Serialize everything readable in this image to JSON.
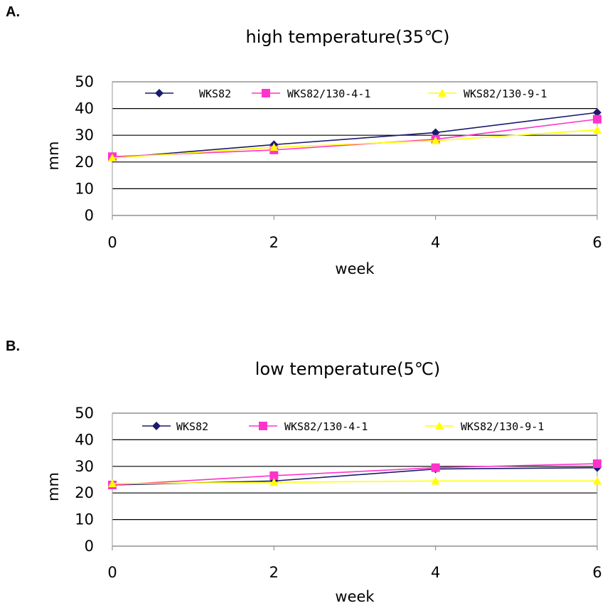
{
  "panels": [
    {
      "label": "A."
    },
    {
      "label": "B."
    }
  ],
  "chart_data": [
    {
      "type": "line",
      "title": "high temperature(35℃)",
      "xlabel": "week",
      "ylabel": "mm",
      "x": [
        0,
        2,
        4,
        6
      ],
      "xticks": [
        "0",
        "2",
        "4",
        "6"
      ],
      "yticks": [
        "0",
        "10",
        "20",
        "30",
        "40",
        "50"
      ],
      "ylim": [
        0,
        50
      ],
      "grid": "horizontal",
      "legend": "top",
      "series": [
        {
          "name": "WKS82",
          "values": [
            21.5,
            26.5,
            31,
            38.5
          ],
          "color": "#1a1a6e",
          "marker": "diamond"
        },
        {
          "name": "WKS82/130-4-1",
          "values": [
            22,
            24.5,
            28.5,
            36
          ],
          "color": "#ff33cc",
          "marker": "square"
        },
        {
          "name": "WKS82/130-9-1",
          "values": [
            21.5,
            25.5,
            28,
            32
          ],
          "color": "#ffff00",
          "marker": "triangle"
        }
      ]
    },
    {
      "type": "line",
      "title": "low temperature(5℃)",
      "xlabel": "week",
      "ylabel": "mm",
      "x": [
        0,
        2,
        4,
        6
      ],
      "xticks": [
        "0",
        "2",
        "4",
        "6"
      ],
      "yticks": [
        "0",
        "10",
        "20",
        "30",
        "40",
        "50"
      ],
      "ylim": [
        0,
        50
      ],
      "grid": "horizontal",
      "legend": "top",
      "series": [
        {
          "name": "WKS82",
          "values": [
            23,
            24.5,
            29,
            29.5
          ],
          "color": "#1a1a6e",
          "marker": "diamond"
        },
        {
          "name": "WKS82/130-4-1",
          "values": [
            23,
            26.5,
            29.5,
            31
          ],
          "color": "#ff33cc",
          "marker": "square"
        },
        {
          "name": "WKS82/130-9-1",
          "values": [
            23.5,
            24,
            24.5,
            24.5
          ],
          "color": "#ffff00",
          "marker": "triangle"
        }
      ]
    }
  ]
}
